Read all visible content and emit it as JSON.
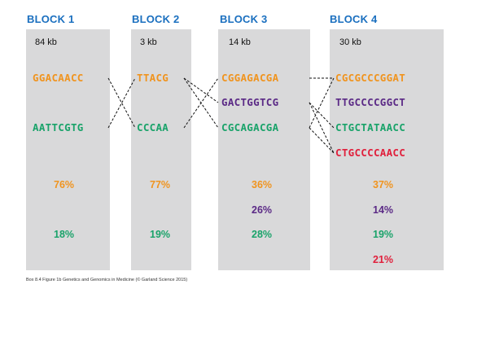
{
  "blocks": [
    {
      "title": "BLOCK 1",
      "size": "84 kb",
      "sequences": [
        "GGACAACC",
        "AATTCGTG"
      ],
      "percentages": [
        "76%",
        "18%"
      ]
    },
    {
      "title": "BLOCK 2",
      "size": "3 kb",
      "sequences": [
        "TTACG",
        "CCCAA"
      ],
      "percentages": [
        "77%",
        "19%"
      ]
    },
    {
      "title": "BLOCK 3",
      "size": "14 kb",
      "sequences": [
        "CGGAGACGA",
        "GACTGGTCG",
        "CGCAGACGA"
      ],
      "percentages": [
        "36%",
        "26%",
        "28%"
      ]
    },
    {
      "title": "BLOCK 4",
      "size": "30 kb",
      "sequences": [
        "CGCGCCCGGAT",
        "TTGCCCCGGCT",
        "CTGCTATAACC",
        "CTGCCCCAACC"
      ],
      "percentages": [
        "37%",
        "14%",
        "19%",
        "21%"
      ]
    }
  ],
  "colors": {
    "orange": "#f0941f",
    "purple": "#5b2a86",
    "green": "#1aa36a",
    "red": "#e0203c",
    "title_blue": "#1a6fbf",
    "panel_gray": "#d9d9da"
  },
  "caption": "Box 8.4 Figure 1b  Genetics and Genomics in Medicine (© Garland Science 2015)"
}
